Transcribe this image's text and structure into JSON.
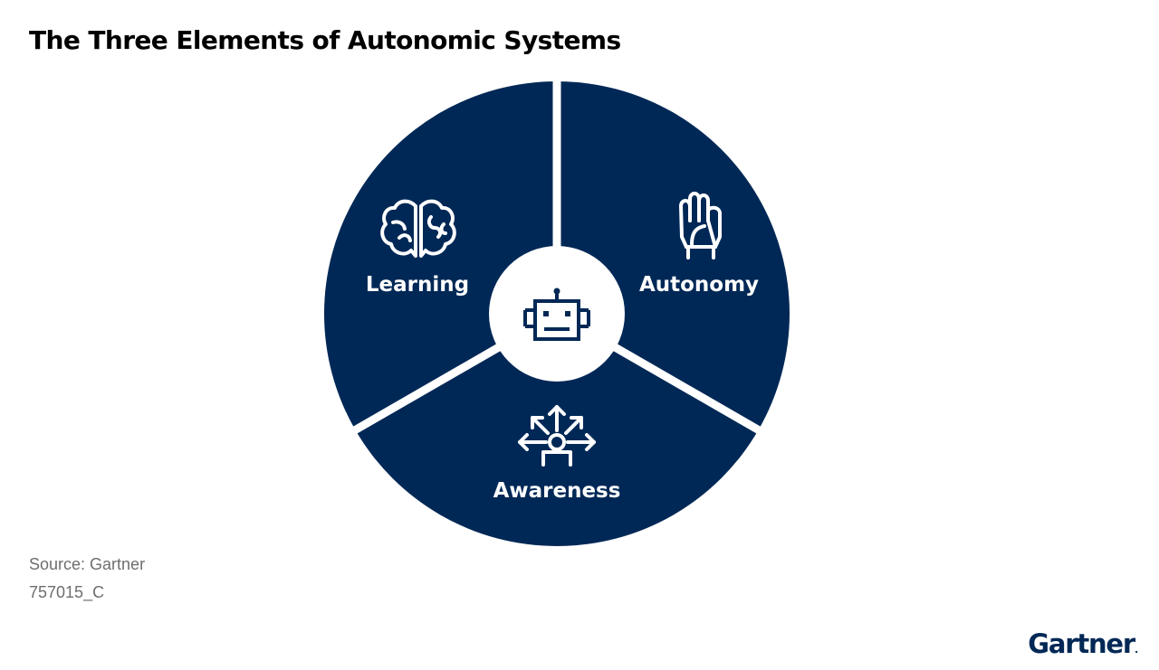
{
  "title": "The Three Elements of Autonomic Systems",
  "segments": {
    "learning": {
      "label": "Learning",
      "icon": "brain-icon"
    },
    "autonomy": {
      "label": "Autonomy",
      "icon": "raised-hand-icon"
    },
    "awareness": {
      "label": "Awareness",
      "icon": "person-awareness-icon"
    }
  },
  "center": {
    "icon": "robot-icon"
  },
  "footer": {
    "source": "Source: Gartner",
    "code": "757015_C"
  },
  "logo": {
    "text": "Gartner",
    "mark": "."
  },
  "colors": {
    "segment_fill": "#002856",
    "center_fill": "#ffffff",
    "icon_stroke": "#ffffff",
    "robot_stroke": "#002856",
    "footer_text": "#6e6e6e"
  }
}
